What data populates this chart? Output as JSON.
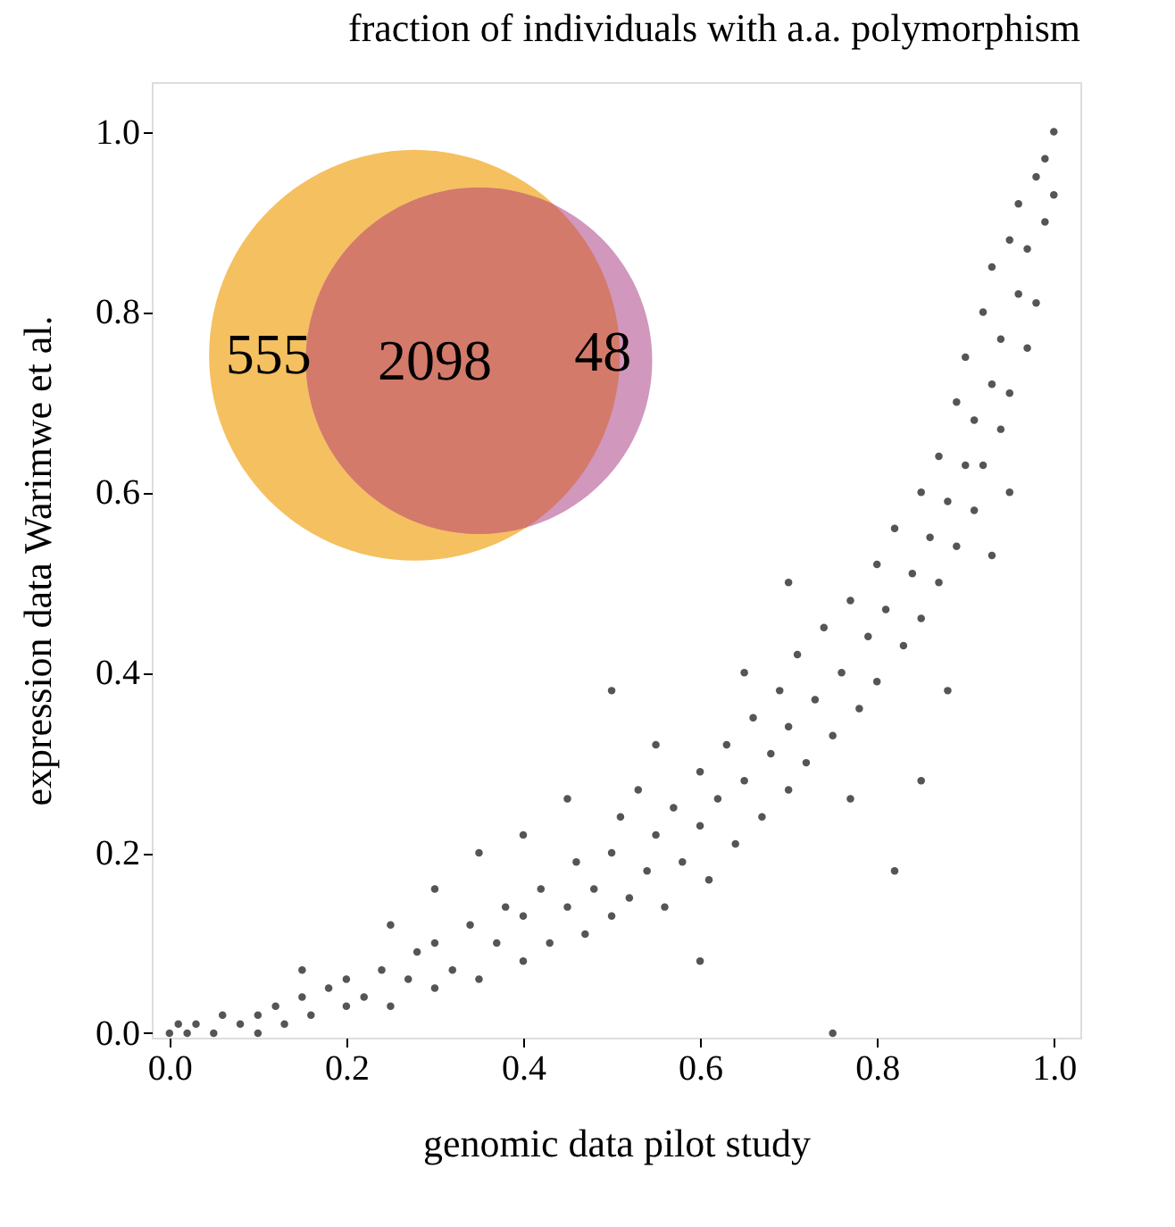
{
  "chart_data": [
    {
      "type": "scatter",
      "title": "fraction of individuals with a.a. polymorphism",
      "xlabel": "genomic data pilot study",
      "ylabel": "expression data Warimwe et al.",
      "marker": "circle",
      "grid": false,
      "legend": false,
      "xlim": [
        -0.02,
        1.03
      ],
      "ylim": [
        -0.005,
        1.055
      ],
      "xticks": [
        {
          "value": 0,
          "label": "0.0"
        },
        {
          "value": 0.2,
          "label": "0.2"
        },
        {
          "value": 0.4,
          "label": "0.4"
        },
        {
          "value": 0.6,
          "label": "0.6"
        },
        {
          "value": 0.8,
          "label": "0.8"
        },
        {
          "value": 1,
          "label": "1.0"
        }
      ],
      "yticks": [
        {
          "value": 0,
          "label": "0.0"
        },
        {
          "value": 0.2,
          "label": "0.2"
        },
        {
          "value": 0.4,
          "label": "0.4"
        },
        {
          "value": 0.6,
          "label": "0.6"
        },
        {
          "value": 0.8,
          "label": "0.8"
        },
        {
          "value": 1,
          "label": "1.0"
        }
      ],
      "series": [
        {
          "color": "#555555",
          "x": [
            0.0,
            0.01,
            0.02,
            0.03,
            0.05,
            0.06,
            0.08,
            0.1,
            0.1,
            0.12,
            0.13,
            0.15,
            0.16,
            0.18,
            0.2,
            0.2,
            0.22,
            0.24,
            0.25,
            0.27,
            0.28,
            0.3,
            0.3,
            0.32,
            0.34,
            0.35,
            0.37,
            0.38,
            0.4,
            0.4,
            0.42,
            0.43,
            0.45,
            0.46,
            0.47,
            0.48,
            0.5,
            0.5,
            0.51,
            0.52,
            0.53,
            0.54,
            0.55,
            0.56,
            0.57,
            0.58,
            0.6,
            0.6,
            0.61,
            0.62,
            0.63,
            0.64,
            0.65,
            0.66,
            0.67,
            0.68,
            0.69,
            0.7,
            0.7,
            0.71,
            0.72,
            0.73,
            0.74,
            0.75,
            0.75,
            0.76,
            0.77,
            0.78,
            0.79,
            0.8,
            0.8,
            0.81,
            0.82,
            0.82,
            0.83,
            0.84,
            0.85,
            0.85,
            0.86,
            0.87,
            0.87,
            0.88,
            0.89,
            0.89,
            0.9,
            0.9,
            0.91,
            0.91,
            0.92,
            0.92,
            0.93,
            0.93,
            0.94,
            0.94,
            0.95,
            0.95,
            0.96,
            0.96,
            0.97,
            0.97,
            0.98,
            0.98,
            0.99,
            0.99,
            1.0,
            1.0,
            0.5,
            0.45,
            0.35,
            0.25,
            0.15,
            0.6,
            0.65,
            0.55,
            0.7,
            0.4,
            0.3,
            0.85,
            0.77,
            0.93,
            0.95,
            0.88
          ],
          "values": [
            0.0,
            0.01,
            0.0,
            0.01,
            0.0,
            0.02,
            0.01,
            0.02,
            0.0,
            0.03,
            0.01,
            0.04,
            0.02,
            0.05,
            0.03,
            0.06,
            0.04,
            0.07,
            0.03,
            0.06,
            0.09,
            0.05,
            0.1,
            0.07,
            0.12,
            0.06,
            0.1,
            0.14,
            0.08,
            0.13,
            0.16,
            0.1,
            0.14,
            0.19,
            0.11,
            0.16,
            0.13,
            0.2,
            0.24,
            0.15,
            0.27,
            0.18,
            0.22,
            0.14,
            0.25,
            0.19,
            0.23,
            0.29,
            0.17,
            0.26,
            0.32,
            0.21,
            0.28,
            0.35,
            0.24,
            0.31,
            0.38,
            0.27,
            0.34,
            0.42,
            0.3,
            0.37,
            0.45,
            0.33,
            0.0,
            0.4,
            0.48,
            0.36,
            0.44,
            0.52,
            0.39,
            0.47,
            0.56,
            0.18,
            0.43,
            0.51,
            0.6,
            0.46,
            0.55,
            0.64,
            0.5,
            0.59,
            0.7,
            0.54,
            0.63,
            0.75,
            0.58,
            0.68,
            0.8,
            0.63,
            0.72,
            0.85,
            0.67,
            0.77,
            0.88,
            0.71,
            0.82,
            0.92,
            0.76,
            0.87,
            0.95,
            0.81,
            0.9,
            0.97,
            1.0,
            0.93,
            0.38,
            0.26,
            0.2,
            0.12,
            0.07,
            0.08,
            0.4,
            0.32,
            0.5,
            0.22,
            0.16,
            0.28,
            0.26,
            0.53,
            0.6,
            0.38
          ]
        }
      ]
    },
    {
      "type": "other",
      "values": [
        555,
        2098,
        48
      ],
      "colors": [
        "#f5c060",
        "#d47a6a",
        "#d197bd"
      ],
      "data_labels": true
    }
  ]
}
